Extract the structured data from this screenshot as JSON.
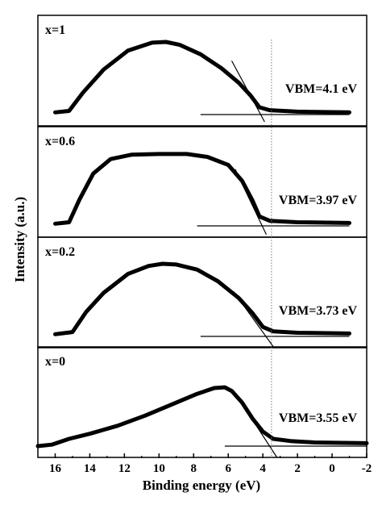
{
  "chart_data": {
    "type": "line",
    "xlabel": "Binding energy (eV)",
    "ylabel": "Intensity (a.u.)",
    "x_reversed": true,
    "xlim": [
      17,
      -2
    ],
    "xticks": [
      16,
      14,
      12,
      10,
      8,
      6,
      4,
      2,
      0,
      -2
    ],
    "reference_line_x": 3.5,
    "panels": [
      {
        "label": "x=1",
        "vbm_label": "VBM=4.1 eV",
        "vbm": 4.1,
        "curve": [
          [
            16.0,
            0.03
          ],
          [
            15.2,
            0.05
          ],
          [
            14.4,
            0.3
          ],
          [
            13.2,
            0.62
          ],
          [
            11.8,
            0.88
          ],
          [
            10.4,
            0.99
          ],
          [
            9.6,
            1.0
          ],
          [
            8.8,
            0.96
          ],
          [
            7.6,
            0.83
          ],
          [
            6.4,
            0.64
          ],
          [
            5.4,
            0.44
          ],
          [
            4.7,
            0.26
          ],
          [
            4.2,
            0.1
          ],
          [
            3.6,
            0.06
          ],
          [
            2.0,
            0.04
          ],
          [
            -1.0,
            0.03
          ]
        ],
        "tangent": [
          [
            5.8,
            0.74
          ],
          [
            3.9,
            -0.1
          ]
        ],
        "baseline": [
          [
            7.6,
            0.0
          ],
          [
            -1.0,
            0.0
          ]
        ]
      },
      {
        "label": "x=0.6",
        "vbm_label": "VBM=3.97 eV",
        "vbm": 3.97,
        "curve": [
          [
            16.0,
            0.03
          ],
          [
            15.2,
            0.05
          ],
          [
            14.6,
            0.36
          ],
          [
            13.8,
            0.72
          ],
          [
            12.8,
            0.92
          ],
          [
            11.6,
            0.98
          ],
          [
            10.0,
            0.99
          ],
          [
            8.4,
            0.99
          ],
          [
            7.2,
            0.95
          ],
          [
            6.0,
            0.84
          ],
          [
            5.2,
            0.62
          ],
          [
            4.6,
            0.35
          ],
          [
            4.2,
            0.13
          ],
          [
            3.6,
            0.07
          ],
          [
            2.0,
            0.05
          ],
          [
            -1.0,
            0.04
          ]
        ],
        "tangent": [
          [
            5.6,
            0.78
          ],
          [
            3.8,
            -0.12
          ]
        ],
        "baseline": [
          [
            7.8,
            0.0
          ],
          [
            -1.0,
            0.0
          ]
        ]
      },
      {
        "label": "x=0.2",
        "vbm_label": "VBM=3.73 eV",
        "vbm": 3.73,
        "curve": [
          [
            16.0,
            0.03
          ],
          [
            15.0,
            0.06
          ],
          [
            14.2,
            0.34
          ],
          [
            13.2,
            0.6
          ],
          [
            11.8,
            0.86
          ],
          [
            10.6,
            0.97
          ],
          [
            9.8,
            1.0
          ],
          [
            9.0,
            0.99
          ],
          [
            7.8,
            0.92
          ],
          [
            6.6,
            0.76
          ],
          [
            5.4,
            0.53
          ],
          [
            4.6,
            0.32
          ],
          [
            4.0,
            0.13
          ],
          [
            3.4,
            0.07
          ],
          [
            2.0,
            0.05
          ],
          [
            -1.0,
            0.04
          ]
        ],
        "tangent": [
          [
            5.7,
            0.62
          ],
          [
            3.4,
            -0.14
          ]
        ],
        "baseline": [
          [
            7.6,
            0.0
          ],
          [
            -1.0,
            0.0
          ]
        ]
      },
      {
        "label": "x=0",
        "vbm_label": "VBM=3.55 eV",
        "vbm": 3.55,
        "curve": [
          [
            17.0,
            0.0
          ],
          [
            16.2,
            0.02
          ],
          [
            15.2,
            0.1
          ],
          [
            14.0,
            0.17
          ],
          [
            12.4,
            0.28
          ],
          [
            10.8,
            0.42
          ],
          [
            9.2,
            0.58
          ],
          [
            7.8,
            0.72
          ],
          [
            6.8,
            0.8
          ],
          [
            6.2,
            0.81
          ],
          [
            5.8,
            0.76
          ],
          [
            5.2,
            0.6
          ],
          [
            4.6,
            0.38
          ],
          [
            4.0,
            0.2
          ],
          [
            3.4,
            0.1
          ],
          [
            2.4,
            0.07
          ],
          [
            1.0,
            0.05
          ],
          [
            -2.0,
            0.04
          ]
        ],
        "tangent": [
          [
            5.3,
            0.62
          ],
          [
            3.2,
            -0.15
          ]
        ],
        "baseline": [
          [
            6.2,
            0.0
          ],
          [
            -2.0,
            0.0
          ]
        ]
      }
    ]
  }
}
